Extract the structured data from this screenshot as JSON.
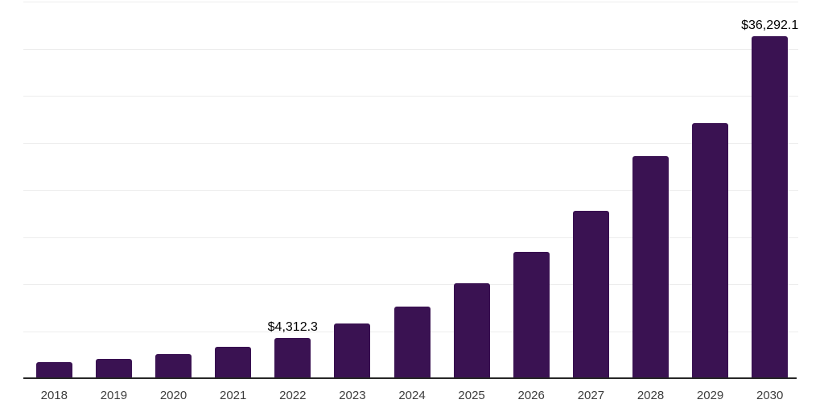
{
  "chart_data": {
    "type": "bar",
    "title": "",
    "categories": [
      "2018",
      "2019",
      "2020",
      "2021",
      "2022",
      "2023",
      "2024",
      "2025",
      "2026",
      "2027",
      "2028",
      "2029",
      "2030"
    ],
    "values": [
      1700,
      2020,
      2560,
      3330,
      4312.3,
      5840,
      7630,
      10100,
      13420,
      17770,
      23560,
      27100,
      36292.1
    ],
    "data_labels": {
      "2022": "$4,312.3",
      "2030": "$36,292.1"
    },
    "xlabel": "",
    "ylabel": "",
    "ylim": [
      0,
      40000
    ],
    "grid": true,
    "gridline_step": 5000,
    "legend_position": "none",
    "colors": {
      "bar": "#3A1252",
      "axis_line": "#262626",
      "gridline": "#ededed",
      "tick_label": "#3d3d3d",
      "data_label": "#000000",
      "background": "#ffffff"
    }
  }
}
